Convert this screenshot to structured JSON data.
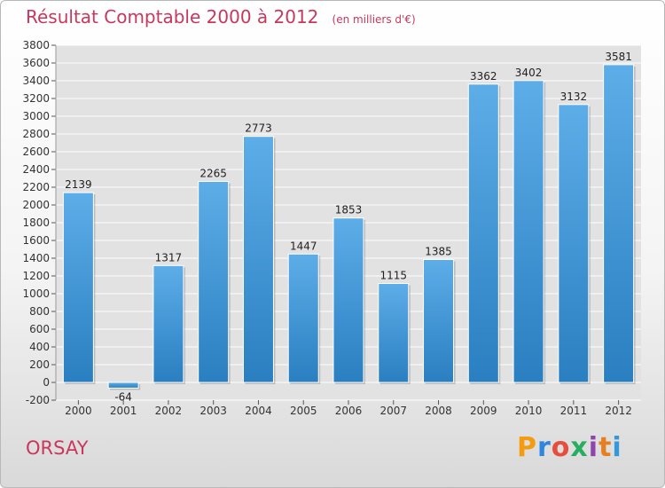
{
  "header": {
    "title": "Résultat Comptable 2000 à 2012",
    "subtitle": "(en milliers d'€)"
  },
  "footer": {
    "place": "ORSAY",
    "logo_text": "Proxiti",
    "logo_colors": [
      "#f39c12",
      "#2e86de",
      "#e74c3c",
      "#27ae60",
      "#8e44ad",
      "#e67e22",
      "#3498db"
    ]
  },
  "chart_data": {
    "type": "bar",
    "title": "Résultat Comptable 2000 à 2012",
    "subtitle": "(en milliers d'€)",
    "categories": [
      "2000",
      "2001",
      "2002",
      "2003",
      "2004",
      "2005",
      "2006",
      "2007",
      "2008",
      "2009",
      "2010",
      "2011",
      "2012"
    ],
    "values": [
      2139,
      -64,
      1317,
      2265,
      2773,
      1447,
      1853,
      1115,
      1385,
      3362,
      3402,
      3132,
      3581
    ],
    "data_labels": [
      "2139",
      "-64",
      "1317",
      "2265",
      "2773",
      "1447",
      "1853",
      "1115",
      "1385",
      "3362",
      "3402",
      "3132",
      "3581"
    ],
    "xlabel": "",
    "ylabel": "",
    "ylim": [
      -200,
      3800
    ],
    "ytick_step": 200,
    "yticks": [
      "-200",
      "0",
      "200",
      "400",
      "600",
      "800",
      "1000",
      "1200",
      "1400",
      "1600",
      "1800",
      "2000",
      "2200",
      "2400",
      "2600",
      "2800",
      "3000",
      "3200",
      "3400",
      "3600",
      "3800"
    ],
    "grid": true,
    "bar_color_top": "#5dade8",
    "bar_color_bottom": "#2a7fc0",
    "plot_background": "#e2e2e2"
  }
}
